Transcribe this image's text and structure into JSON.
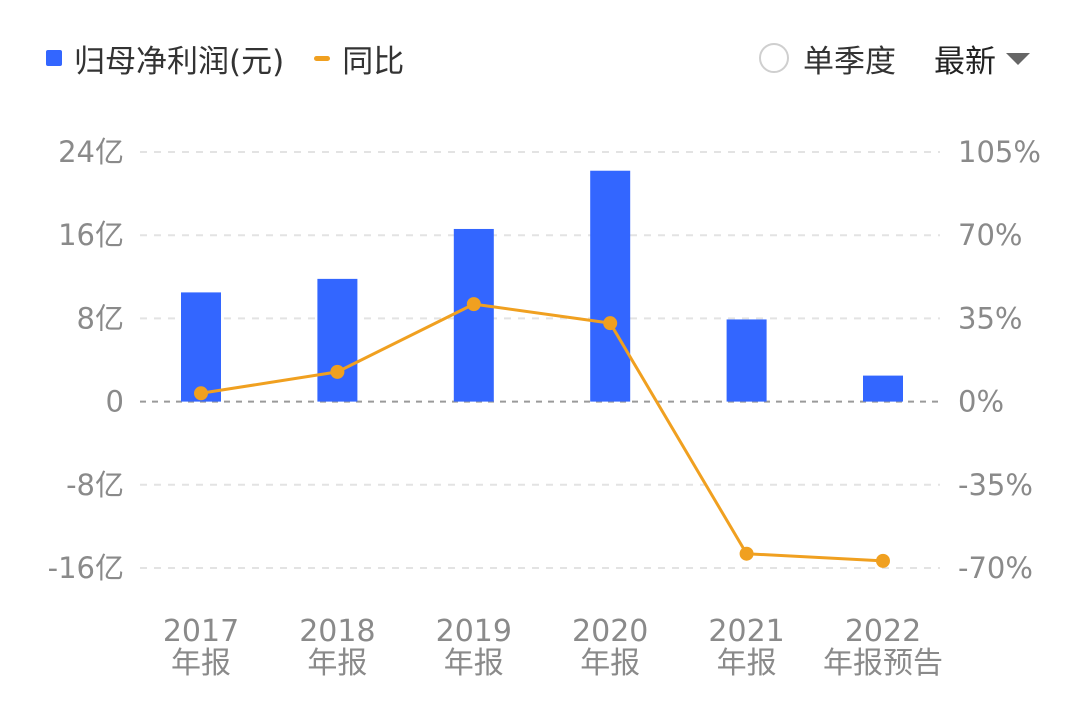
{
  "legend": {
    "bar_label": "归母净利润(元)",
    "line_label": "同比"
  },
  "controls": {
    "quarter_label": "单季度",
    "latest_label": "最新"
  },
  "colors": {
    "bar": "#3366ff",
    "line": "#f0a020",
    "grid": "#e3e3e3",
    "zero": "#9a9a9a",
    "text": "#8a8a8a"
  },
  "chart_data": {
    "type": "bar",
    "categories": [
      [
        "2017",
        "年报"
      ],
      [
        "2018",
        "年报"
      ],
      [
        "2019",
        "年报"
      ],
      [
        "2020",
        "年报"
      ],
      [
        "2021",
        "年报"
      ],
      [
        "2022",
        "年报预告"
      ]
    ],
    "series": [
      {
        "name": "归母净利润(元)",
        "type": "bar",
        "axis": "left",
        "values": [
          10.5,
          11.8,
          16.6,
          22.2,
          7.9,
          2.5
        ]
      },
      {
        "name": "同比",
        "type": "line",
        "axis": "right",
        "values": [
          3.5,
          12.5,
          41,
          33,
          -64,
          -67
        ]
      }
    ],
    "y_left": {
      "ylim": [
        -16,
        24
      ],
      "ticks": [
        24,
        16,
        8,
        0,
        -8,
        -16
      ],
      "tick_labels": [
        "24亿",
        "16亿",
        "8亿",
        "0",
        "-8亿",
        "-16亿"
      ]
    },
    "y_right": {
      "ylim": [
        -70,
        105
      ],
      "ticks": [
        105,
        70,
        35,
        0,
        -35,
        -70
      ],
      "tick_labels": [
        "105%",
        "70%",
        "35%",
        "0%",
        "-35%",
        "-70%"
      ]
    },
    "grid": true,
    "legend_position": "top-left"
  }
}
